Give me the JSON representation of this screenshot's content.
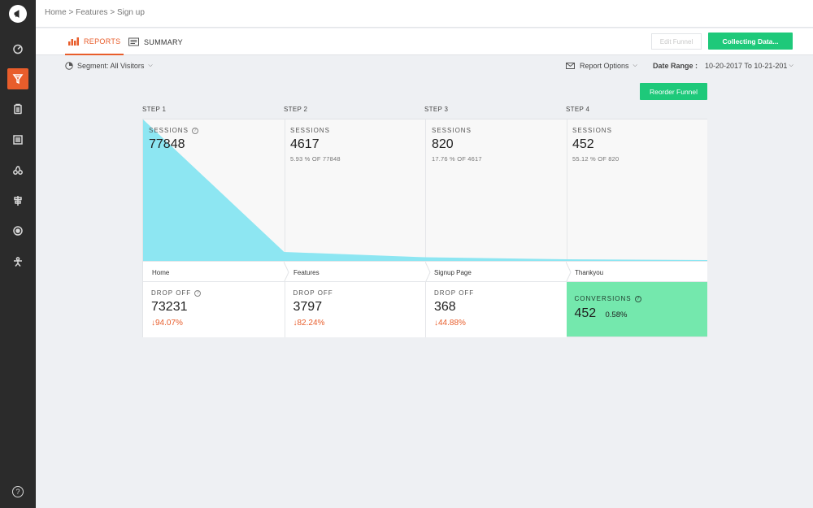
{
  "breadcrumb": {
    "home": "Home",
    "sep1": ">",
    "features": "Features",
    "sep2": ">",
    "current": "Sign up"
  },
  "tabs": {
    "reports": "REPORTS",
    "summary": "SUMMARY"
  },
  "buttons": {
    "edit_funnel": "Edit Funnel",
    "collecting": "Collecting Data...",
    "reorder": "Reorder Funnel"
  },
  "segment": {
    "label": "Segment: All Visitors"
  },
  "report_options": {
    "label": "Report Options"
  },
  "date_range": {
    "label": "Date Range :",
    "value": "10-20-2017 To 10-21-201"
  },
  "funnel": {
    "steps": [
      {
        "step": "STEP 1",
        "sessions_label": "SESSIONS",
        "sessions": "77848",
        "sub": "",
        "page": "Home",
        "drop_label": "DROP OFF",
        "drop": "73231",
        "drop_pct": "94.07%"
      },
      {
        "step": "STEP 2",
        "sessions_label": "SESSIONS",
        "sessions": "4617",
        "sub": "5.93 % OF 77848",
        "page": "Features",
        "drop_label": "DROP OFF",
        "drop": "3797",
        "drop_pct": "82.24%"
      },
      {
        "step": "STEP 3",
        "sessions_label": "SESSIONS",
        "sessions": "820",
        "sub": "17.76 % OF 4617",
        "page": "Signup Page",
        "drop_label": "DROP OFF",
        "drop": "368",
        "drop_pct": "44.88%"
      },
      {
        "step": "STEP 4",
        "sessions_label": "SESSIONS",
        "sessions": "452",
        "sub": "55.12 % OF 820",
        "page": "Thankyou"
      }
    ],
    "conversions": {
      "label": "CONVERSIONS",
      "value": "452",
      "pct": "0.58%"
    },
    "fill_color": "#8de6f2"
  },
  "colors": {
    "accent": "#e85d2b",
    "green": "#1ec97a",
    "conversion_bg": "#74e8ad",
    "sidebar": "#2b2b2b"
  }
}
